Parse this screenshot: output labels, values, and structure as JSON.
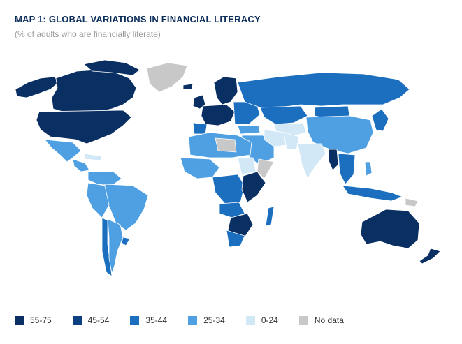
{
  "header": {
    "title": "MAP 1: GLOBAL VARIATIONS IN FINANCIAL LITERACY",
    "subtitle": "(% of adults who are financially literate)"
  },
  "colors": {
    "c55_75": "#0a2f63",
    "c45_54": "#0e3f80",
    "c35_44": "#1c6fbf",
    "c25_34": "#4fa0e3",
    "c0_24": "#d2e8f7",
    "nodata": "#c8c8c8"
  },
  "legend": [
    {
      "label": "55-75",
      "color": "#0a2f63"
    },
    {
      "label": "45-54",
      "color": "#0e3f80"
    },
    {
      "label": "35-44",
      "color": "#1c6fbf"
    },
    {
      "label": "25-34",
      "color": "#4fa0e3"
    },
    {
      "label": "0-24",
      "color": "#d2e8f7"
    },
    {
      "label": "No data",
      "color": "#c8c8c8"
    }
  ]
}
